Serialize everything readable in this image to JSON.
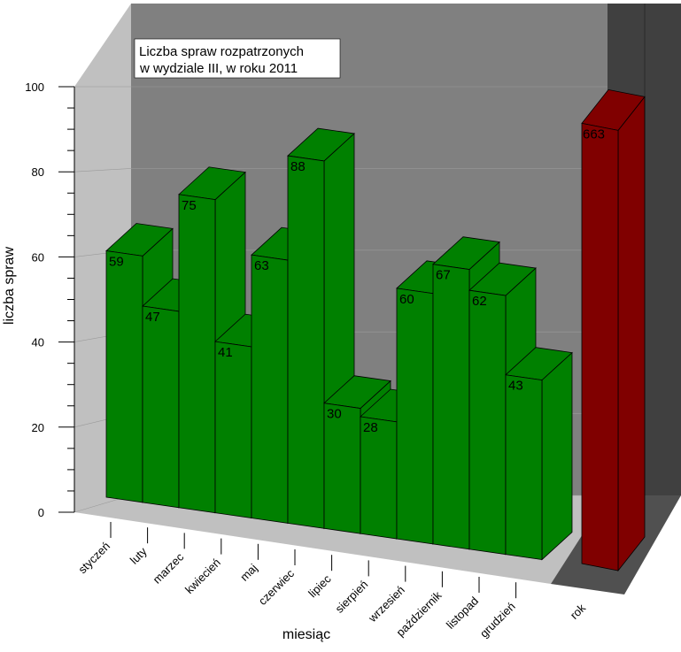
{
  "chart_data": {
    "type": "bar",
    "title_line1": "Liczba spraw rozpatrzonych",
    "title_line2": "w  wydziale III, w roku 2011",
    "xlabel": "miesiąc",
    "ylabel": "liczba spraw",
    "ylim": [
      0,
      100
    ],
    "yticks": [
      "0",
      "20",
      "40",
      "60",
      "80",
      "100"
    ],
    "categories": [
      "styczeń",
      "luty",
      "marzec",
      "kwiecień",
      "maj",
      "czerwiec",
      "lipiec",
      "sierpień",
      "wrzesień",
      "październik",
      "listopad",
      "grudzień"
    ],
    "values": [
      59,
      47,
      75,
      41,
      63,
      88,
      30,
      28,
      60,
      67,
      62,
      43
    ],
    "total": {
      "category": "rok",
      "value": 663
    },
    "colors": {
      "months": "#008000",
      "total": "#800000",
      "back_wall": "#808080",
      "side_wall": "#c0c0c0",
      "floor": "#c0c0c0",
      "dark_panel": "#404040"
    }
  }
}
